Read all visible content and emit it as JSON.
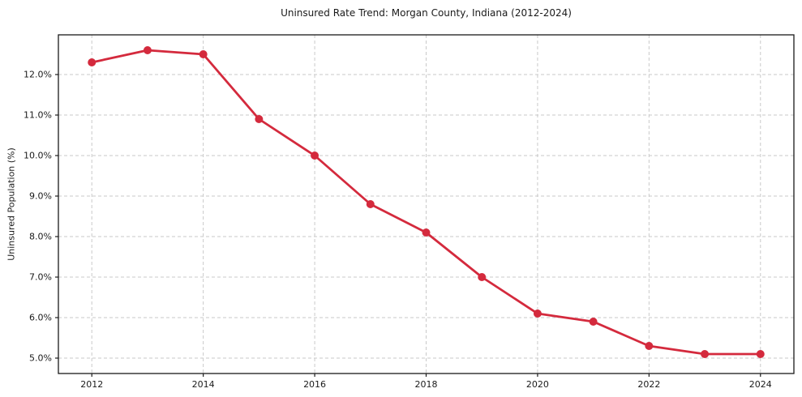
{
  "chart_data": {
    "type": "line",
    "title": "Uninsured Rate Trend: Morgan County, Indiana (2012-2024)",
    "xlabel": "",
    "ylabel": "Uninsured Population (%)",
    "x": [
      2012,
      2013,
      2014,
      2015,
      2016,
      2017,
      2018,
      2019,
      2020,
      2021,
      2022,
      2023,
      2024
    ],
    "values": [
      12.3,
      12.6,
      12.5,
      10.9,
      10.0,
      8.8,
      8.1,
      7.0,
      6.1,
      5.9,
      5.3,
      5.1,
      5.1
    ],
    "x_ticks": [
      {
        "v": 2012,
        "label": "2012"
      },
      {
        "v": 2014,
        "label": "2014"
      },
      {
        "v": 2016,
        "label": "2016"
      },
      {
        "v": 2018,
        "label": "2018"
      },
      {
        "v": 2020,
        "label": "2020"
      },
      {
        "v": 2022,
        "label": "2022"
      },
      {
        "v": 2024,
        "label": "2024"
      }
    ],
    "y_ticks": [
      {
        "v": 5.0,
        "label": "5.0%"
      },
      {
        "v": 6.0,
        "label": "6.0%"
      },
      {
        "v": 7.0,
        "label": "7.0%"
      },
      {
        "v": 8.0,
        "label": "8.0%"
      },
      {
        "v": 9.0,
        "label": "9.0%"
      },
      {
        "v": 10.0,
        "label": "10.0%"
      },
      {
        "v": 11.0,
        "label": "11.0%"
      },
      {
        "v": 12.0,
        "label": "12.0%"
      }
    ],
    "xlim": [
      2011.4,
      2024.6
    ],
    "ylim": [
      4.62,
      12.98
    ],
    "grid": true,
    "legend": "none",
    "marker": "circle",
    "line_color": "#d42a3d",
    "grid_color": "#c9c9c9",
    "axis_color": "#1a1a1a",
    "background_color": "#ffffff"
  }
}
